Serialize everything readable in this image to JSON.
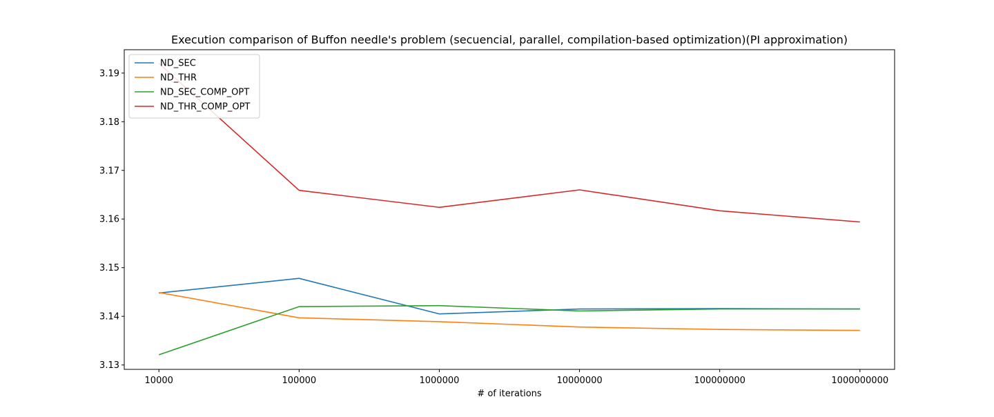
{
  "chart_data": {
    "type": "line",
    "title": "Execution comparison of Buffon needle's problem (secuencial, parallel, compilation-based optimization)(PI approximation)",
    "xlabel": "# of iterations",
    "ylabel": "",
    "categories": [
      "10000",
      "100000",
      "1000000",
      "10000000",
      "100000000",
      "1000000000"
    ],
    "ylim": [
      3.1291,
      3.1948
    ],
    "yticks": [
      "3.13",
      "3.14",
      "3.15",
      "3.16",
      "3.17",
      "3.18",
      "3.19"
    ],
    "grid": false,
    "legend_position": "top-left",
    "series": [
      {
        "name": "ND_SEC",
        "color": "#1f77b4",
        "values": [
          3.1448,
          3.1478,
          3.1405,
          3.1415,
          3.1416,
          3.1415
        ]
      },
      {
        "name": "ND_THR",
        "color": "#ff7f0e",
        "values": [
          3.1449,
          3.1397,
          3.1389,
          3.1378,
          3.1373,
          3.1371
        ]
      },
      {
        "name": "ND_SEC_COMP_OPT",
        "color": "#2ca02c",
        "values": [
          3.1321,
          3.142,
          3.1422,
          3.1411,
          3.1415,
          3.1415
        ]
      },
      {
        "name": "ND_THR_COMP_OPT",
        "color": "#d62728",
        "values": [
          3.192,
          3.1659,
          3.1624,
          3.166,
          3.1617,
          3.1594
        ]
      }
    ]
  }
}
